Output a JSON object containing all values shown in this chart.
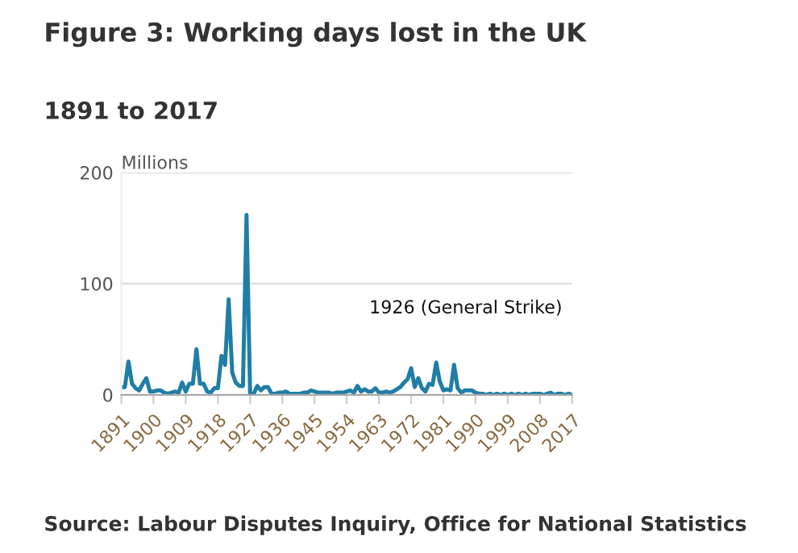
{
  "chart_data": {
    "type": "line",
    "title": "Figure 3: Working days lost in the UK",
    "subtitle": "1891 to 2017",
    "ylabel": "Millions",
    "x": [
      1891,
      1892,
      1893,
      1894,
      1895,
      1896,
      1897,
      1898,
      1899,
      1900,
      1901,
      1902,
      1903,
      1904,
      1905,
      1906,
      1907,
      1908,
      1909,
      1910,
      1911,
      1912,
      1913,
      1914,
      1915,
      1916,
      1917,
      1918,
      1919,
      1920,
      1921,
      1922,
      1923,
      1924,
      1925,
      1926,
      1927,
      1928,
      1929,
      1930,
      1931,
      1932,
      1933,
      1934,
      1935,
      1936,
      1937,
      1938,
      1939,
      1940,
      1941,
      1942,
      1943,
      1944,
      1945,
      1946,
      1947,
      1948,
      1949,
      1950,
      1951,
      1952,
      1953,
      1954,
      1955,
      1956,
      1957,
      1958,
      1959,
      1960,
      1961,
      1962,
      1963,
      1964,
      1965,
      1966,
      1967,
      1968,
      1969,
      1970,
      1971,
      1972,
      1973,
      1974,
      1975,
      1976,
      1977,
      1978,
      1979,
      1980,
      1981,
      1982,
      1983,
      1984,
      1985,
      1986,
      1987,
      1988,
      1989,
      1990,
      1991,
      1992,
      1993,
      1994,
      1995,
      1996,
      1997,
      1998,
      1999,
      2000,
      2001,
      2002,
      2003,
      2004,
      2005,
      2006,
      2007,
      2008,
      2009,
      2010,
      2011,
      2012,
      2013,
      2014,
      2015,
      2016,
      2017
    ],
    "series": [
      {
        "color": "#207ea6",
        "values": [
          7,
          7,
          30,
          10,
          6,
          4,
          10,
          15,
          3,
          3,
          4,
          4,
          2,
          1,
          2,
          3,
          2,
          11,
          3,
          10,
          10,
          41,
          10,
          10,
          3,
          2,
          6,
          6,
          35,
          27,
          86,
          20,
          11,
          8,
          8,
          162,
          1,
          1,
          8,
          4,
          7,
          7,
          1,
          1,
          2,
          2,
          3,
          1,
          1,
          1,
          1,
          2,
          2,
          4,
          3,
          2,
          2,
          2,
          2,
          1,
          2,
          2,
          2,
          3,
          4,
          2,
          8,
          3,
          5,
          3,
          3,
          6,
          2,
          2,
          3,
          2,
          3,
          5,
          7,
          11,
          14,
          24,
          7,
          15,
          6,
          3,
          10,
          9,
          29,
          12,
          4,
          5,
          4,
          27,
          6,
          2,
          4,
          4,
          4,
          2,
          1,
          1,
          0,
          1,
          0,
          1,
          0,
          1,
          0,
          1,
          0,
          1,
          0,
          1,
          0,
          1,
          1,
          1,
          0,
          1,
          2,
          0,
          1,
          1,
          0,
          1,
          0
        ]
      }
    ],
    "xlim": [
      1891,
      2017
    ],
    "xticks": [
      1891,
      1900,
      1909,
      1918,
      1927,
      1936,
      1945,
      1954,
      1963,
      1972,
      1981,
      1990,
      1999,
      2008,
      2017
    ],
    "ylim": [
      0,
      200
    ],
    "yticks": [
      0,
      100,
      200
    ],
    "grid": "y",
    "legend": false,
    "marker": "none",
    "line_style": "solid",
    "annotations": [
      "1926 (General Strike)",
      "Source: Labour Disputes Inquiry, Office for National Statistics"
    ]
  }
}
